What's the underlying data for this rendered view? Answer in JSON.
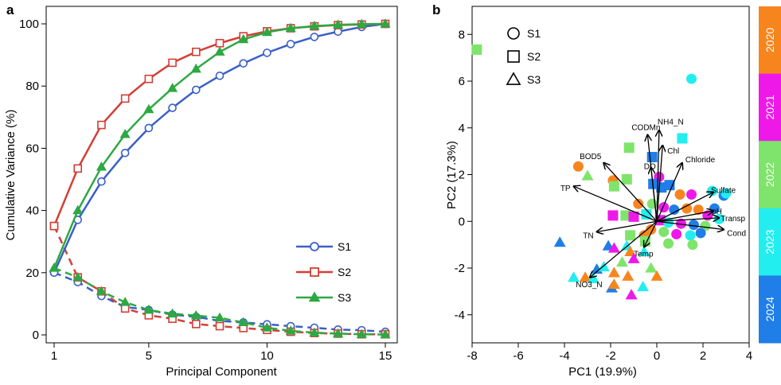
{
  "panel_a": {
    "letter": "a",
    "chart_data": {
      "type": "line",
      "xlabel": "Principal Component",
      "ylabel": "Cumulative Variance (%)",
      "xlim": [
        1,
        15
      ],
      "ylim": [
        0,
        100
      ],
      "x_ticks": [
        1,
        5,
        10,
        15
      ],
      "y_ticks": [
        0,
        20,
        40,
        60,
        80,
        100
      ],
      "x": [
        1,
        2,
        3,
        4,
        5,
        6,
        7,
        8,
        9,
        10,
        11,
        12,
        13,
        14,
        15
      ],
      "series": [
        {
          "name": "S1",
          "color": "#3a5fc8",
          "marker": "circle",
          "style": "solid",
          "values": [
            20,
            37,
            49.3,
            58.5,
            66.5,
            73,
            78.8,
            83.3,
            87.3,
            90.7,
            93.5,
            95.8,
            97.5,
            99,
            100
          ]
        },
        {
          "name": "S2",
          "color": "#d23f36",
          "marker": "square",
          "style": "solid",
          "values": [
            35,
            53.5,
            67.5,
            76,
            82.3,
            87.5,
            91,
            93.8,
            96,
            97.6,
            98.6,
            99.2,
            99.6,
            99.8,
            100
          ]
        },
        {
          "name": "S3",
          "color": "#2ea843",
          "marker": "triangle",
          "style": "solid",
          "values": [
            21.5,
            40,
            54,
            64.5,
            72.5,
            79.3,
            85.5,
            91,
            95,
            97.3,
            98.6,
            99.3,
            99.7,
            99.9,
            100
          ]
        },
        {
          "name": "S1 individual",
          "color": "#3a5fc8",
          "marker": "circle",
          "style": "dashed",
          "values": [
            20,
            17,
            12.5,
            9,
            8,
            6.5,
            5.8,
            4.5,
            4,
            3.4,
            2.8,
            2.3,
            1.7,
            1.5,
            1
          ]
        },
        {
          "name": "S2 individual",
          "color": "#d23f36",
          "marker": "square",
          "style": "dashed",
          "values": [
            35,
            18.5,
            14,
            8.5,
            6.3,
            5.2,
            3.5,
            2.8,
            2.2,
            1.6,
            1,
            0.6,
            0.4,
            0.2,
            0.2
          ]
        },
        {
          "name": "S3 individual",
          "color": "#2ea843",
          "marker": "triangle",
          "style": "dashed",
          "values": [
            21.5,
            18.5,
            14,
            10.5,
            8,
            6.8,
            6.2,
            5.5,
            4,
            2.3,
            1.3,
            0.7,
            0.4,
            0.2,
            0.1
          ]
        }
      ],
      "legend": [
        {
          "label": "S1",
          "color": "#3a5fc8",
          "marker": "circle"
        },
        {
          "label": "S2",
          "color": "#d23f36",
          "marker": "square"
        },
        {
          "label": "S3",
          "color": "#2ea843",
          "marker": "triangle"
        }
      ],
      "legend_position": "right-center"
    }
  },
  "panel_b": {
    "letter": "b",
    "chart_data": {
      "type": "scatter",
      "xlabel": "PC1 (19.9%)",
      "ylabel": "PC2 (17.3%)",
      "xlim": [
        -8,
        4
      ],
      "ylim": [
        -5.2,
        9.2
      ],
      "x_ticks": [
        -8,
        -6,
        -4,
        -2,
        0,
        2,
        4
      ],
      "y_ticks": [
        -4,
        -2,
        0,
        2,
        4,
        6,
        8
      ],
      "shape_legend": [
        {
          "label": "S1",
          "shape": "circle"
        },
        {
          "label": "S2",
          "shape": "square"
        },
        {
          "label": "S3",
          "shape": "triangle"
        }
      ],
      "colorbar": [
        {
          "label": "2020",
          "color": "#f7851e"
        },
        {
          "label": "2021",
          "color": "#ee19e8"
        },
        {
          "label": "2022",
          "color": "#7fe46b"
        },
        {
          "label": "2023",
          "color": "#22eef0"
        },
        {
          "label": "2024",
          "color": "#1f7ee8"
        }
      ],
      "loadings": [
        {
          "label": "NH4_N",
          "x": 0.1,
          "y": 3.9
        },
        {
          "label": "CODMn",
          "x": -0.4,
          "y": 3.7
        },
        {
          "label": "Chl",
          "x": 0.25,
          "y": 3.25
        },
        {
          "label": "BOD5",
          "x": -2.3,
          "y": 2.5
        },
        {
          "label": "DO",
          "x": -0.25,
          "y": 2.3
        },
        {
          "label": "Chloride",
          "x": 1.1,
          "y": 2.5
        },
        {
          "label": "TP",
          "x": -3.6,
          "y": 1.5
        },
        {
          "label": "Sulfate",
          "x": 2.45,
          "y": 1.25
        },
        {
          "label": "pH",
          "x": 2.45,
          "y": 0.45
        },
        {
          "label": "Transp",
          "x": 2.7,
          "y": 0.15
        },
        {
          "label": "Cond",
          "x": 2.9,
          "y": -0.35
        },
        {
          "label": "TN",
          "x": -2.6,
          "y": -0.45
        },
        {
          "label": "Temp",
          "x": -0.55,
          "y": -1.1
        },
        {
          "label": "NO3_N",
          "x": -2.9,
          "y": -2.4
        }
      ],
      "points": [
        {
          "x": -7.8,
          "y": 7.35,
          "shape": "square",
          "year": "2022"
        },
        {
          "x": 1.5,
          "y": 6.1,
          "shape": "circle",
          "year": "2023"
        },
        {
          "x": 1.1,
          "y": 3.55,
          "shape": "square",
          "year": "2023"
        },
        {
          "x": -1.2,
          "y": 3.15,
          "shape": "square",
          "year": "2022"
        },
        {
          "x": -0.2,
          "y": 2.75,
          "shape": "square",
          "year": "2024"
        },
        {
          "x": -3.4,
          "y": 2.35,
          "shape": "circle",
          "year": "2020"
        },
        {
          "x": -3.0,
          "y": 1.95,
          "shape": "triangle",
          "year": "2022"
        },
        {
          "x": -1.9,
          "y": 1.75,
          "shape": "circle",
          "year": "2020"
        },
        {
          "x": -1.3,
          "y": 1.8,
          "shape": "square",
          "year": "2022"
        },
        {
          "x": -1.85,
          "y": 1.5,
          "shape": "square",
          "year": "2022"
        },
        {
          "x": 0.1,
          "y": 1.9,
          "shape": "circle",
          "year": "2021"
        },
        {
          "x": -0.15,
          "y": 1.6,
          "shape": "square",
          "year": "2024"
        },
        {
          "x": 0.2,
          "y": 1.45,
          "shape": "square",
          "year": "2024"
        },
        {
          "x": 0.55,
          "y": 1.55,
          "shape": "square",
          "year": "2024"
        },
        {
          "x": 1.0,
          "y": 1.15,
          "shape": "circle",
          "year": "2020"
        },
        {
          "x": 1.5,
          "y": 1.15,
          "shape": "circle",
          "year": "2021"
        },
        {
          "x": 2.4,
          "y": 1.3,
          "shape": "circle",
          "year": "2023"
        },
        {
          "x": 2.9,
          "y": 1.1,
          "shape": "circle",
          "year": "2024"
        },
        {
          "x": 3.0,
          "y": 1.2,
          "shape": "circle",
          "year": "2023"
        },
        {
          "x": -0.8,
          "y": 0.75,
          "shape": "circle",
          "year": "2020"
        },
        {
          "x": -0.2,
          "y": 0.75,
          "shape": "circle",
          "year": "2022"
        },
        {
          "x": 0.3,
          "y": 0.6,
          "shape": "circle",
          "year": "2021"
        },
        {
          "x": 0.75,
          "y": 0.5,
          "shape": "circle",
          "year": "2024"
        },
        {
          "x": 1.3,
          "y": 0.55,
          "shape": "circle",
          "year": "2020"
        },
        {
          "x": 1.8,
          "y": 0.5,
          "shape": "circle",
          "year": "2020"
        },
        {
          "x": 2.2,
          "y": 0.25,
          "shape": "circle",
          "year": "2021"
        },
        {
          "x": 2.7,
          "y": 0.1,
          "shape": "circle",
          "year": "2023"
        },
        {
          "x": 2.5,
          "y": 0.55,
          "shape": "circle",
          "year": "2024"
        },
        {
          "x": -1.9,
          "y": 0.25,
          "shape": "square",
          "year": "2021"
        },
        {
          "x": -1.35,
          "y": 0.25,
          "shape": "square",
          "year": "2022"
        },
        {
          "x": -1.0,
          "y": 0.2,
          "shape": "square",
          "year": "2021"
        },
        {
          "x": -0.45,
          "y": 0.3,
          "shape": "square",
          "year": "2023"
        },
        {
          "x": 0.15,
          "y": 0.05,
          "shape": "square",
          "year": "2021"
        },
        {
          "x": 0.5,
          "y": -0.05,
          "shape": "circle",
          "year": "2023"
        },
        {
          "x": 1.05,
          "y": -0.1,
          "shape": "circle",
          "year": "2021"
        },
        {
          "x": 1.6,
          "y": -0.15,
          "shape": "circle",
          "year": "2024"
        },
        {
          "x": 2.1,
          "y": -0.2,
          "shape": "circle",
          "year": "2022"
        },
        {
          "x": -0.25,
          "y": -0.35,
          "shape": "circle",
          "year": "2020"
        },
        {
          "x": 0.3,
          "y": -0.45,
          "shape": "circle",
          "year": "2022"
        },
        {
          "x": 0.85,
          "y": -0.55,
          "shape": "circle",
          "year": "2021"
        },
        {
          "x": 1.45,
          "y": -0.6,
          "shape": "circle",
          "year": "2023"
        },
        {
          "x": 1.9,
          "y": -0.5,
          "shape": "circle",
          "year": "2024"
        },
        {
          "x": -0.55,
          "y": -0.6,
          "shape": "circle",
          "year": "2020"
        },
        {
          "x": 0.5,
          "y": -0.95,
          "shape": "circle",
          "year": "2022"
        },
        {
          "x": 1.55,
          "y": -1.0,
          "shape": "circle",
          "year": "2022"
        },
        {
          "x": -1.15,
          "y": -0.6,
          "shape": "square",
          "year": "2022"
        },
        {
          "x": -0.5,
          "y": -0.85,
          "shape": "square",
          "year": "2022"
        },
        {
          "x": -4.2,
          "y": -0.9,
          "shape": "triangle",
          "year": "2024"
        },
        {
          "x": -2.1,
          "y": -1.05,
          "shape": "triangle",
          "year": "2024"
        },
        {
          "x": -1.85,
          "y": -1.15,
          "shape": "triangle",
          "year": "2021"
        },
        {
          "x": -1.3,
          "y": -1.05,
          "shape": "triangle",
          "year": "2023"
        },
        {
          "x": -1.15,
          "y": -1.3,
          "shape": "triangle",
          "year": "2020"
        },
        {
          "x": -1.0,
          "y": -1.6,
          "shape": "triangle",
          "year": "2021"
        },
        {
          "x": -1.5,
          "y": -1.75,
          "shape": "triangle",
          "year": "2022"
        },
        {
          "x": -0.55,
          "y": -1.3,
          "shape": "triangle",
          "year": "2023"
        },
        {
          "x": -2.6,
          "y": -2.05,
          "shape": "triangle",
          "year": "2024"
        },
        {
          "x": -2.3,
          "y": -1.95,
          "shape": "triangle",
          "year": "2023"
        },
        {
          "x": -1.85,
          "y": -2.2,
          "shape": "triangle",
          "year": "2020"
        },
        {
          "x": -1.25,
          "y": -2.35,
          "shape": "triangle",
          "year": "2020"
        },
        {
          "x": -0.25,
          "y": -2.0,
          "shape": "triangle",
          "year": "2022"
        },
        {
          "x": 0.0,
          "y": -2.35,
          "shape": "triangle",
          "year": "2020"
        },
        {
          "x": -0.6,
          "y": -2.8,
          "shape": "triangle",
          "year": "2023"
        },
        {
          "x": -3.1,
          "y": -2.4,
          "shape": "triangle",
          "year": "2020"
        },
        {
          "x": -2.75,
          "y": -2.45,
          "shape": "triangle",
          "year": "2023"
        },
        {
          "x": -3.6,
          "y": -2.4,
          "shape": "triangle",
          "year": "2023"
        },
        {
          "x": -1.95,
          "y": -2.85,
          "shape": "triangle",
          "year": "2024"
        },
        {
          "x": -1.85,
          "y": -2.7,
          "shape": "triangle",
          "year": "2020"
        },
        {
          "x": -1.1,
          "y": -3.15,
          "shape": "triangle",
          "year": "2021"
        }
      ]
    }
  }
}
